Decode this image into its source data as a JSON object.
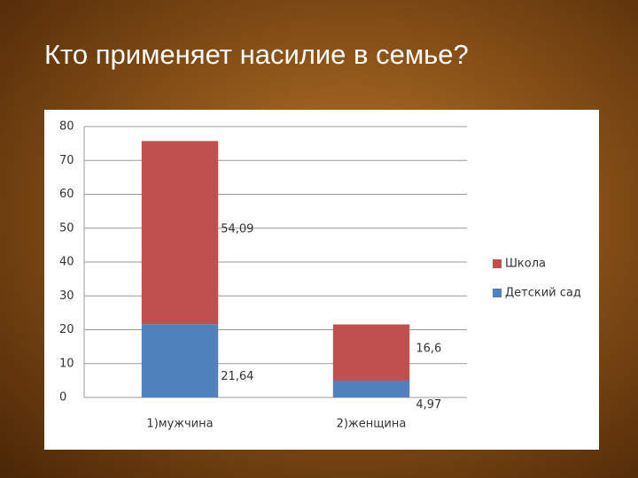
{
  "title": "Кто применяет насилие в семье?",
  "chart_data": {
    "type": "stacked_bar",
    "categories": [
      "1)мужчина",
      "2)женщина"
    ],
    "series": [
      {
        "name": "Детский сад",
        "color": "#4f81bd",
        "values": [
          21.64,
          4.97
        ],
        "value_labels": [
          "21,64",
          "4,97"
        ]
      },
      {
        "name": "Школа",
        "color": "#c0504d",
        "values": [
          54.09,
          16.6
        ],
        "value_labels": [
          "54,09",
          "16,6"
        ]
      }
    ],
    "ylim": [
      0,
      80
    ],
    "yticks": [
      0,
      10,
      20,
      30,
      40,
      50,
      60,
      70,
      80
    ],
    "grid": true,
    "legend": "right"
  }
}
